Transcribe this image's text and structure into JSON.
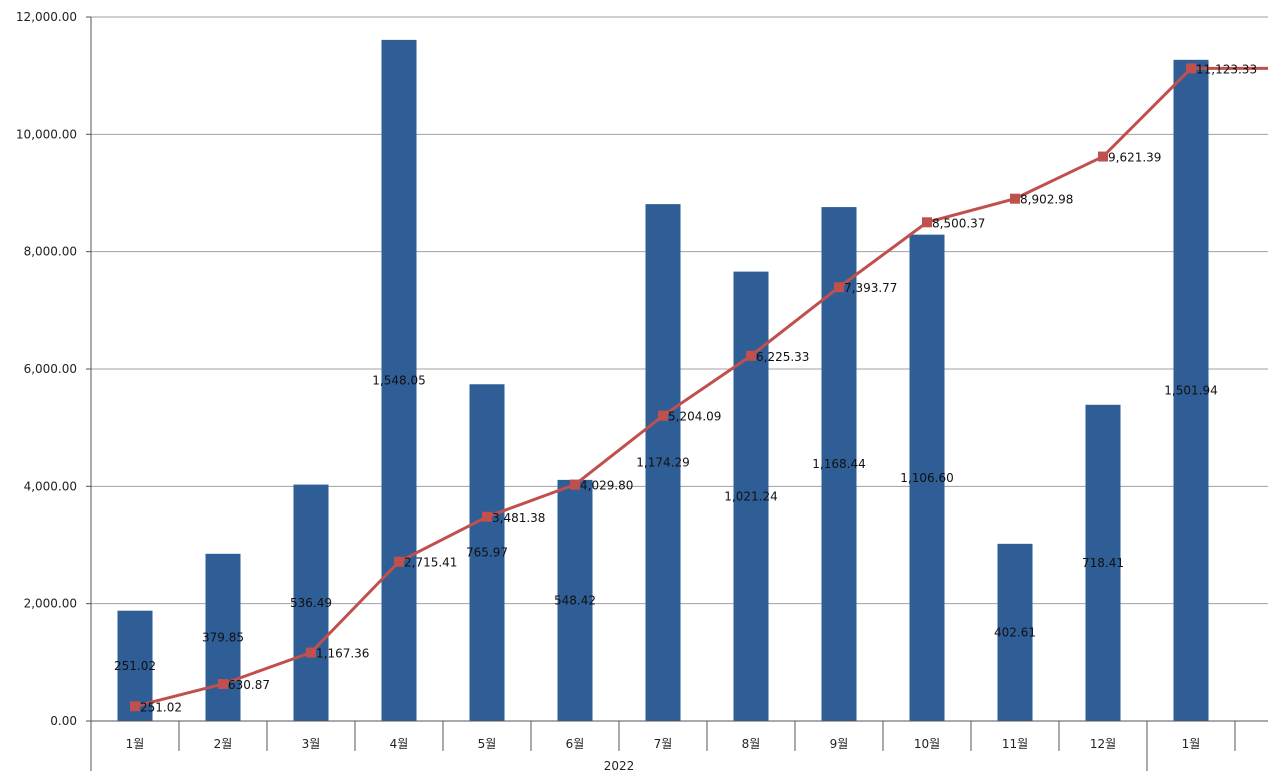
{
  "chart_data": {
    "type": "bar",
    "categories": [
      "1월",
      "2월",
      "3월",
      "4월",
      "5월",
      "6월",
      "7월",
      "8월",
      "9월",
      "10월",
      "11월",
      "12월",
      "1월"
    ],
    "category_groups": [
      {
        "label": "2022",
        "span": [
          0,
          11
        ]
      }
    ],
    "series": [
      {
        "type": "bar",
        "color": "#2f5d96",
        "values": [
          1880,
          2850,
          4030,
          11610,
          5740,
          4110,
          8810,
          7660,
          8760,
          8290,
          3020,
          5390,
          11270
        ],
        "labels": [
          "251.02",
          "379.85",
          "536.49",
          "1,548.05",
          "765.97",
          "548.42",
          "1,174.29",
          "1,021.24",
          "1,168.44",
          "1,106.60",
          "402.61",
          "718.41",
          "1,501.94"
        ]
      },
      {
        "type": "line",
        "color": "#c0504d",
        "marker": "square",
        "values": [
          251.02,
          630.87,
          1167.36,
          2715.41,
          3481.38,
          4029.8,
          5204.09,
          6225.33,
          7393.77,
          8500.37,
          8902.98,
          9621.39,
          11123.33
        ],
        "labels": [
          "251.02",
          "630.87",
          "1,167.36",
          "2,715.41",
          "3,481.38",
          "4,029.80",
          "5,204.09",
          "6,225.33",
          "7,393.77",
          "8,500.37",
          "8,902.98",
          "9,621.39",
          "11,123.33"
        ]
      }
    ],
    "yticks": [
      "0.00",
      "2,000.00",
      "4,000.00",
      "6,000.00",
      "8,000.00",
      "10,000.00",
      "12,000.00"
    ],
    "ylim": [
      0,
      12000
    ],
    "grid": true,
    "legend": "none"
  }
}
